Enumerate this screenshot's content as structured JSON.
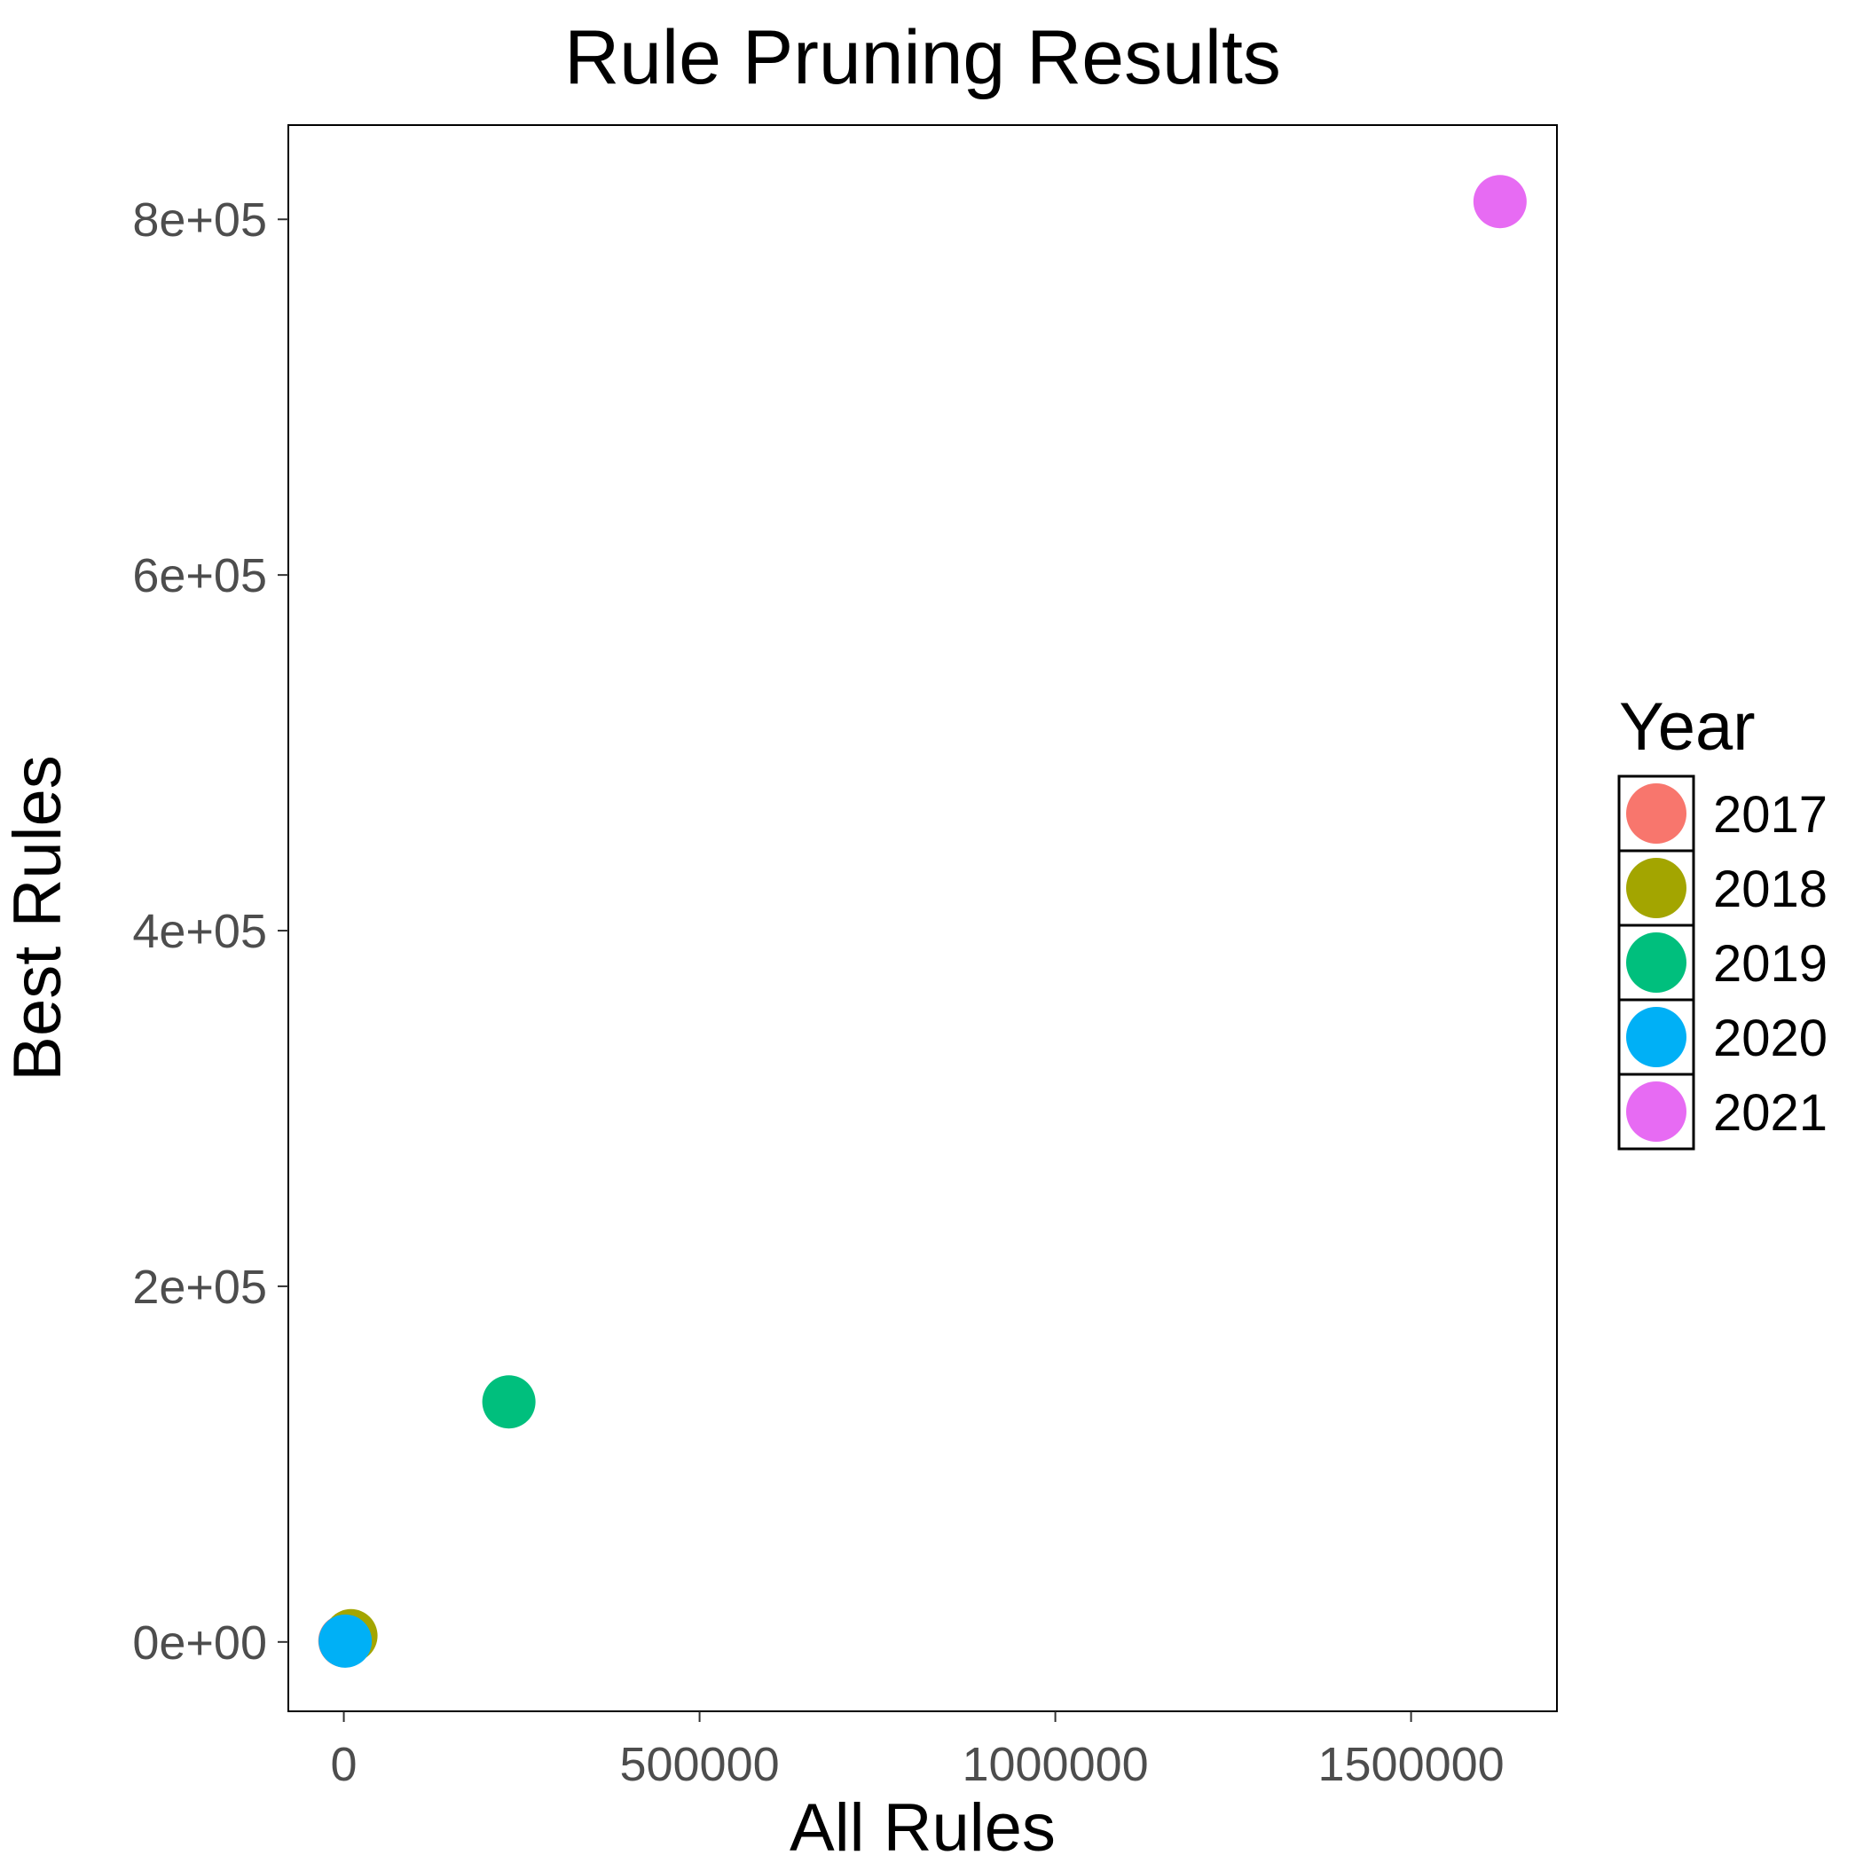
{
  "chart_data": {
    "type": "scatter",
    "title": "Rule Pruning Results",
    "xlabel": "All Rules",
    "ylabel": "Best Rules",
    "xlim": [
      -78000,
      1705000
    ],
    "ylim": [
      -39000,
      853000
    ],
    "x_ticks": [
      0,
      500000,
      1000000,
      1500000
    ],
    "x_tick_labels": [
      "0",
      "500000",
      "1000000",
      "1500000"
    ],
    "y_ticks": [
      0,
      200000,
      400000,
      600000,
      800000
    ],
    "y_tick_labels": [
      "0e+00",
      "2e+05",
      "4e+05",
      "6e+05",
      "8e+05"
    ],
    "grid": true,
    "legend": {
      "title": "Year",
      "placement": "right",
      "entries": [
        "2017",
        "2018",
        "2019",
        "2020",
        "2021"
      ]
    },
    "colors": {
      "2017": "#F8766D",
      "2018": "#A3A500",
      "2019": "#00BF7D",
      "2020": "#00B0F6",
      "2021": "#E76BF3"
    },
    "series": [
      {
        "name": "2017",
        "x": [
          1500
        ],
        "y": [
          600
        ]
      },
      {
        "name": "2018",
        "x": [
          10000
        ],
        "y": [
          3500
        ]
      },
      {
        "name": "2019",
        "x": [
          232000
        ],
        "y": [
          135000
        ]
      },
      {
        "name": "2020",
        "x": [
          2000
        ],
        "y": [
          500
        ]
      },
      {
        "name": "2021",
        "x": [
          1625000
        ],
        "y": [
          810000
        ]
      }
    ]
  }
}
